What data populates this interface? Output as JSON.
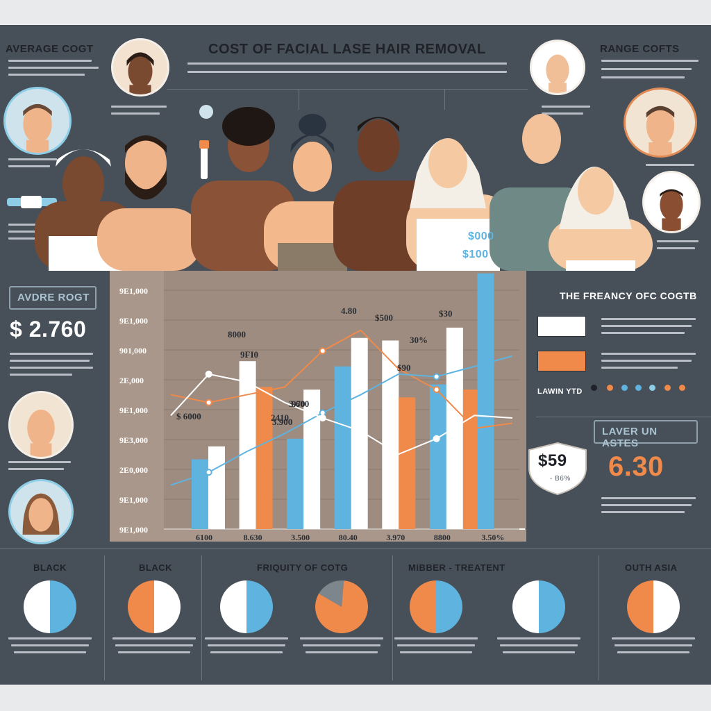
{
  "header": {
    "title": "COST OF FACIAL LASE HAIR REMOVAL",
    "left_label": "AVERAGE COGT",
    "right_label": "RANGE COFTS"
  },
  "left_stats": {
    "box_label": "AVDRE ROGT",
    "big_value": "$ 2.760"
  },
  "right_stats": {
    "freq_title": "THE FREANCY OFC COGTB",
    "legend_note": "LAWIN YTD",
    "laser_label": "LAVER UN ASTES",
    "big_value": "6.30",
    "badge_value": "$59",
    "badge_sub": "- B6%"
  },
  "people_overlay": {
    "tag1": "$000",
    "tag2": "$100"
  },
  "chart_data": {
    "type": "bar",
    "y_tick_labels": [
      "9E1,000",
      "9E1,000",
      "901,000",
      "2E,000",
      "9E1,000",
      "9E3,000",
      "2E0,000",
      "9E1,000",
      "9E1,000"
    ],
    "x_tick_labels": [
      "6100",
      "8.630",
      "3.500",
      "80.40",
      "3.970",
      "8800",
      "3.50%"
    ],
    "series": [
      {
        "color": "#5fb3df",
        "values": [
          0.27,
          0,
          0.35,
          0.63,
          0,
          0.56,
          0.99
        ]
      },
      {
        "color": "#ffffff",
        "values": [
          0.32,
          0.65,
          0.54,
          0.74,
          0.73,
          0.78,
          0
        ]
      },
      {
        "color": "#f08a4b",
        "values": [
          0,
          0.55,
          0,
          0,
          0.51,
          0.54,
          0
        ]
      }
    ],
    "line_series": [
      {
        "color": "#f08a4b",
        "values": [
          0.52,
          0.49,
          0.52,
          0.55,
          0.69,
          0.77,
          0.62,
          0.54,
          0.39,
          0.41
        ]
      },
      {
        "color": "#5fb3df",
        "values": [
          0.17,
          0.22,
          0.3,
          0.37,
          0.45,
          0.52,
          0.6,
          0.59,
          0.63,
          0.67
        ]
      },
      {
        "color": "#ffffff",
        "values": [
          0.44,
          0.6,
          0.57,
          0.49,
          0.43,
          0.38,
          0.29,
          0.35,
          0.44,
          0.43
        ]
      }
    ],
    "annotations": [
      "8000",
      "9FI0",
      "4.80",
      "$500",
      "$30",
      "$90",
      "30%",
      "3.600",
      "2410",
      "970",
      "3.900",
      "$ 6000"
    ]
  },
  "bottom": {
    "labels": [
      "BLACK",
      "BLACK",
      "FRIQUITY OF COTG",
      "MIBBER - TREATENT",
      "OUTH ASIA"
    ],
    "pies": [
      {
        "fractions": [
          0.5,
          0.5
        ],
        "colors": [
          "#ffffff",
          "#5fb3df"
        ],
        "start": 180
      },
      {
        "fractions": [
          0.5,
          0.5
        ],
        "colors": [
          "#ffffff",
          "#f08a4b"
        ],
        "start": 0
      },
      {
        "fractions": [
          0.5,
          0.5
        ],
        "colors": [
          "#5fb3df",
          "#ffffff"
        ],
        "start": 0
      },
      {
        "fractions": [
          0.18,
          0.82
        ],
        "colors": [
          "#7e868d",
          "#f08a4b"
        ],
        "start": -60
      },
      {
        "fractions": [
          0.5,
          0.5
        ],
        "colors": [
          "#5fb3df",
          "#f08a4b"
        ],
        "start": 0
      },
      {
        "fractions": [
          0.5,
          0.5
        ],
        "colors": [
          "#5fb3df",
          "#ffffff"
        ],
        "start": 0
      },
      {
        "fractions": [
          0.5,
          0.5
        ],
        "colors": [
          "#ffffff",
          "#f08a4b"
        ],
        "start": 0
      }
    ]
  },
  "colors": {
    "panel": "#474f58",
    "blue": "#5fb3df",
    "orange": "#f08a4b",
    "chart_bg": "#a8978a"
  }
}
